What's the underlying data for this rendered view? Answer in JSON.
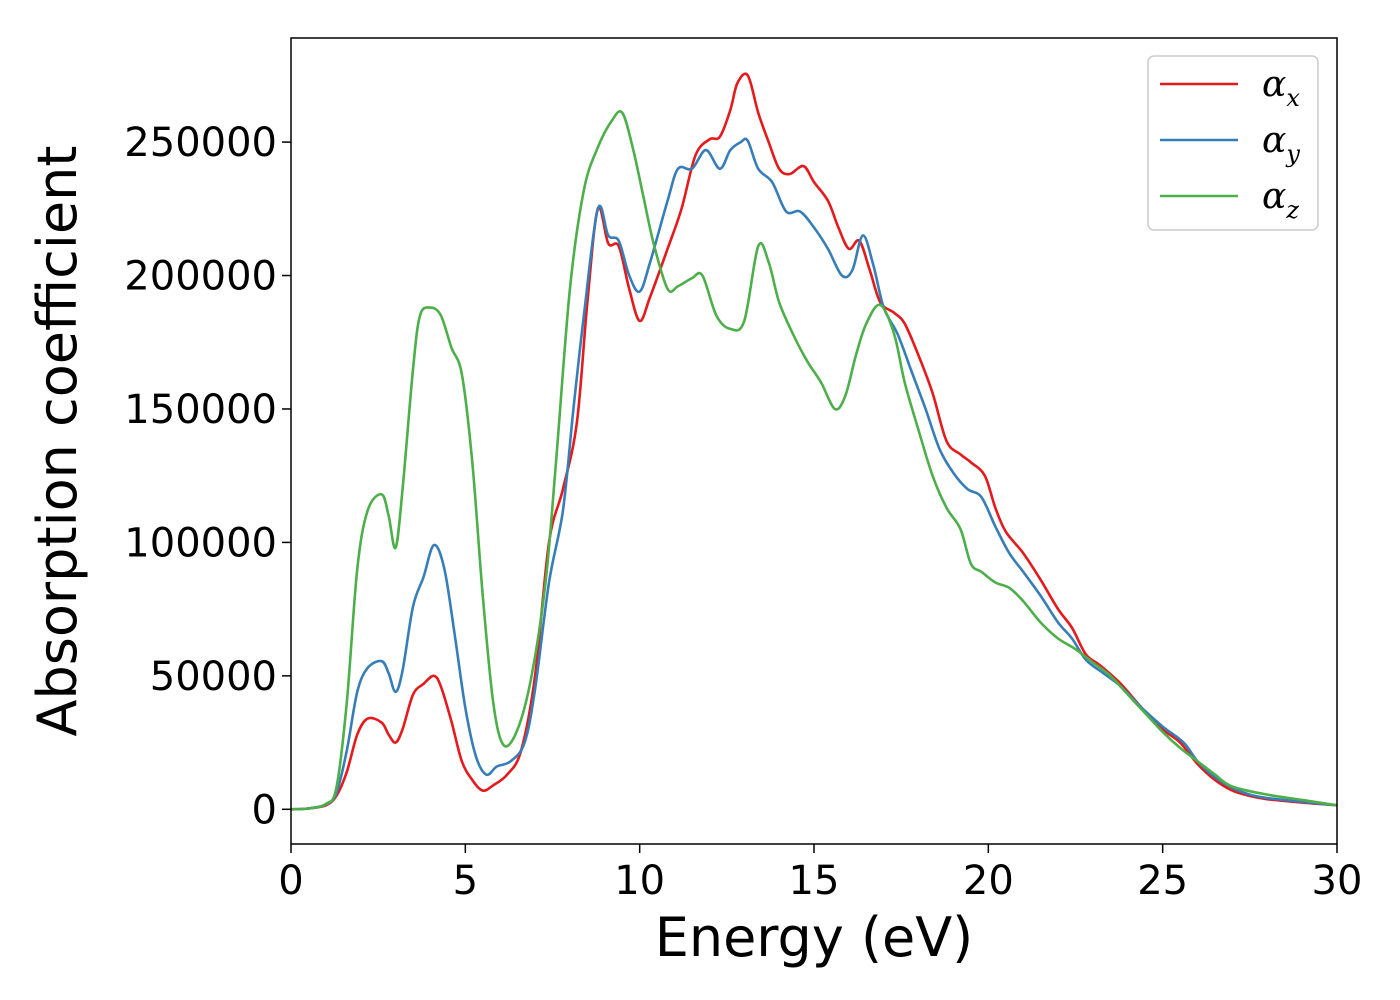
{
  "chart_data": {
    "type": "line",
    "title": "",
    "xlabel": "Energy (eV)",
    "ylabel": "Absorption coefficient",
    "xlim": [
      0,
      30
    ],
    "ylim": [
      -13000,
      289000
    ],
    "xticks": [
      0,
      5,
      10,
      15,
      20,
      25,
      30
    ],
    "yticks": [
      0,
      50000,
      100000,
      150000,
      200000,
      250000
    ],
    "grid": false,
    "legend_position": "top-right",
    "series": [
      {
        "name": "α",
        "subscript": "x",
        "color": "#e41a1c",
        "points": [
          [
            0,
            0
          ],
          [
            0.5,
            300
          ],
          [
            1,
            1500
          ],
          [
            1.3,
            5000
          ],
          [
            1.6,
            14000
          ],
          [
            1.9,
            28000
          ],
          [
            2.2,
            34000
          ],
          [
            2.6,
            32500
          ],
          [
            2.8,
            28000
          ],
          [
            3.0,
            25000
          ],
          [
            3.2,
            30000
          ],
          [
            3.5,
            43000
          ],
          [
            3.8,
            47000
          ],
          [
            4.1,
            50000
          ],
          [
            4.3,
            46000
          ],
          [
            4.6,
            33000
          ],
          [
            4.9,
            18000
          ],
          [
            5.2,
            11000
          ],
          [
            5.5,
            7000
          ],
          [
            5.8,
            9000
          ],
          [
            6.2,
            13000
          ],
          [
            6.6,
            22000
          ],
          [
            7.0,
            50000
          ],
          [
            7.4,
            100000
          ],
          [
            7.8,
            120000
          ],
          [
            8.2,
            145000
          ],
          [
            8.5,
            190000
          ],
          [
            8.8,
            225000
          ],
          [
            9.1,
            212000
          ],
          [
            9.4,
            211000
          ],
          [
            9.7,
            195000
          ],
          [
            10.0,
            183000
          ],
          [
            10.3,
            192000
          ],
          [
            10.8,
            210000
          ],
          [
            11.2,
            225000
          ],
          [
            11.6,
            245000
          ],
          [
            12.0,
            251000
          ],
          [
            12.3,
            252000
          ],
          [
            12.6,
            262000
          ],
          [
            12.8,
            272000
          ],
          [
            13.1,
            275000
          ],
          [
            13.4,
            261000
          ],
          [
            13.7,
            250000
          ],
          [
            14.0,
            240000
          ],
          [
            14.3,
            238000
          ],
          [
            14.7,
            241000
          ],
          [
            15.0,
            235000
          ],
          [
            15.4,
            228000
          ],
          [
            15.7,
            218000
          ],
          [
            16.0,
            210000
          ],
          [
            16.3,
            213000
          ],
          [
            16.6,
            202000
          ],
          [
            16.9,
            190000
          ],
          [
            17.3,
            186000
          ],
          [
            17.6,
            182000
          ],
          [
            18.0,
            170000
          ],
          [
            18.4,
            156000
          ],
          [
            18.8,
            138000
          ],
          [
            19.2,
            133000
          ],
          [
            19.5,
            130000
          ],
          [
            19.9,
            125000
          ],
          [
            20.2,
            113000
          ],
          [
            20.5,
            104000
          ],
          [
            21.0,
            96000
          ],
          [
            21.5,
            86000
          ],
          [
            22.0,
            75000
          ],
          [
            22.4,
            68000
          ],
          [
            22.8,
            58000
          ],
          [
            23.2,
            54000
          ],
          [
            23.8,
            47000
          ],
          [
            24.4,
            38000
          ],
          [
            25.0,
            30000
          ],
          [
            25.5,
            25000
          ],
          [
            26.0,
            17000
          ],
          [
            26.5,
            11000
          ],
          [
            27.0,
            7000
          ],
          [
            27.5,
            5000
          ],
          [
            28.0,
            3800
          ],
          [
            29.0,
            2500
          ],
          [
            30.0,
            1500
          ]
        ]
      },
      {
        "name": "α",
        "subscript": "y",
        "color": "#377eb8",
        "points": [
          [
            0,
            0
          ],
          [
            0.5,
            300
          ],
          [
            1,
            1800
          ],
          [
            1.3,
            6000
          ],
          [
            1.6,
            22000
          ],
          [
            1.9,
            44000
          ],
          [
            2.2,
            53000
          ],
          [
            2.6,
            55500
          ],
          [
            2.8,
            51000
          ],
          [
            3.0,
            44000
          ],
          [
            3.2,
            52000
          ],
          [
            3.5,
            76000
          ],
          [
            3.8,
            87000
          ],
          [
            4.1,
            99000
          ],
          [
            4.4,
            90000
          ],
          [
            4.7,
            65000
          ],
          [
            5.0,
            38000
          ],
          [
            5.3,
            20000
          ],
          [
            5.6,
            13000
          ],
          [
            5.9,
            16000
          ],
          [
            6.3,
            18000
          ],
          [
            6.7,
            25000
          ],
          [
            7.0,
            45000
          ],
          [
            7.4,
            85000
          ],
          [
            7.8,
            112000
          ],
          [
            8.1,
            150000
          ],
          [
            8.4,
            185000
          ],
          [
            8.8,
            225000
          ],
          [
            9.1,
            215000
          ],
          [
            9.4,
            213000
          ],
          [
            9.7,
            200000
          ],
          [
            10.0,
            194000
          ],
          [
            10.3,
            205000
          ],
          [
            10.8,
            228000
          ],
          [
            11.1,
            240000
          ],
          [
            11.5,
            240000
          ],
          [
            11.9,
            247000
          ],
          [
            12.3,
            240000
          ],
          [
            12.6,
            247000
          ],
          [
            12.9,
            250000
          ],
          [
            13.1,
            250500
          ],
          [
            13.4,
            240000
          ],
          [
            13.8,
            235000
          ],
          [
            14.2,
            224000
          ],
          [
            14.6,
            224000
          ],
          [
            15.0,
            218000
          ],
          [
            15.4,
            210000
          ],
          [
            15.8,
            200000
          ],
          [
            16.1,
            202000
          ],
          [
            16.4,
            215000
          ],
          [
            16.7,
            204000
          ],
          [
            17.0,
            188000
          ],
          [
            17.4,
            178000
          ],
          [
            17.8,
            164000
          ],
          [
            18.2,
            150000
          ],
          [
            18.6,
            135000
          ],
          [
            19.0,
            126000
          ],
          [
            19.4,
            120000
          ],
          [
            19.8,
            117000
          ],
          [
            20.2,
            106000
          ],
          [
            20.6,
            96000
          ],
          [
            21.0,
            89000
          ],
          [
            21.5,
            80000
          ],
          [
            22.0,
            70000
          ],
          [
            22.4,
            64000
          ],
          [
            22.8,
            56000
          ],
          [
            23.3,
            51000
          ],
          [
            23.8,
            46000
          ],
          [
            24.4,
            38000
          ],
          [
            25.0,
            31000
          ],
          [
            25.6,
            25000
          ],
          [
            26.0,
            18000
          ],
          [
            26.5,
            12000
          ],
          [
            27.0,
            8000
          ],
          [
            27.5,
            5500
          ],
          [
            28.0,
            4200
          ],
          [
            29.0,
            2800
          ],
          [
            30.0,
            1500
          ]
        ]
      },
      {
        "name": "α",
        "subscript": "z",
        "color": "#4daf4a",
        "points": [
          [
            0,
            0
          ],
          [
            0.5,
            300
          ],
          [
            1,
            2000
          ],
          [
            1.3,
            8000
          ],
          [
            1.6,
            40000
          ],
          [
            1.9,
            90000
          ],
          [
            2.2,
            112000
          ],
          [
            2.6,
            118000
          ],
          [
            2.8,
            110000
          ],
          [
            3.0,
            98000
          ],
          [
            3.2,
            120000
          ],
          [
            3.5,
            165000
          ],
          [
            3.7,
            185000
          ],
          [
            4.0,
            188000
          ],
          [
            4.3,
            185000
          ],
          [
            4.6,
            173000
          ],
          [
            4.9,
            163000
          ],
          [
            5.2,
            130000
          ],
          [
            5.5,
            80000
          ],
          [
            5.8,
            40000
          ],
          [
            6.1,
            24000
          ],
          [
            6.5,
            30000
          ],
          [
            6.9,
            50000
          ],
          [
            7.3,
            85000
          ],
          [
            7.6,
            130000
          ],
          [
            8.0,
            195000
          ],
          [
            8.4,
            232000
          ],
          [
            8.8,
            248000
          ],
          [
            9.2,
            258000
          ],
          [
            9.5,
            261000
          ],
          [
            9.8,
            248000
          ],
          [
            10.1,
            230000
          ],
          [
            10.4,
            212000
          ],
          [
            10.8,
            195000
          ],
          [
            11.1,
            196000
          ],
          [
            11.5,
            199000
          ],
          [
            11.8,
            200000
          ],
          [
            12.2,
            185000
          ],
          [
            12.6,
            180000
          ],
          [
            13.0,
            183000
          ],
          [
            13.4,
            211000
          ],
          [
            13.7,
            205000
          ],
          [
            14.0,
            190000
          ],
          [
            14.4,
            178000
          ],
          [
            14.8,
            168000
          ],
          [
            15.2,
            160000
          ],
          [
            15.6,
            150000
          ],
          [
            15.9,
            155000
          ],
          [
            16.2,
            170000
          ],
          [
            16.5,
            182000
          ],
          [
            16.9,
            189000
          ],
          [
            17.3,
            178000
          ],
          [
            17.6,
            160000
          ],
          [
            18.0,
            142000
          ],
          [
            18.4,
            125000
          ],
          [
            18.8,
            113000
          ],
          [
            19.2,
            105000
          ],
          [
            19.5,
            92000
          ],
          [
            19.8,
            89000
          ],
          [
            20.2,
            85000
          ],
          [
            20.6,
            83000
          ],
          [
            21.0,
            78000
          ],
          [
            21.5,
            70000
          ],
          [
            22.0,
            64000
          ],
          [
            22.5,
            60000
          ],
          [
            23.0,
            55000
          ],
          [
            23.5,
            50000
          ],
          [
            24.0,
            43000
          ],
          [
            24.5,
            36000
          ],
          [
            25.0,
            29000
          ],
          [
            25.5,
            23000
          ],
          [
            26.0,
            18000
          ],
          [
            26.5,
            13000
          ],
          [
            27.0,
            8500
          ],
          [
            28.0,
            5500
          ],
          [
            29.0,
            3500
          ],
          [
            30.0,
            1500
          ]
        ]
      }
    ]
  }
}
